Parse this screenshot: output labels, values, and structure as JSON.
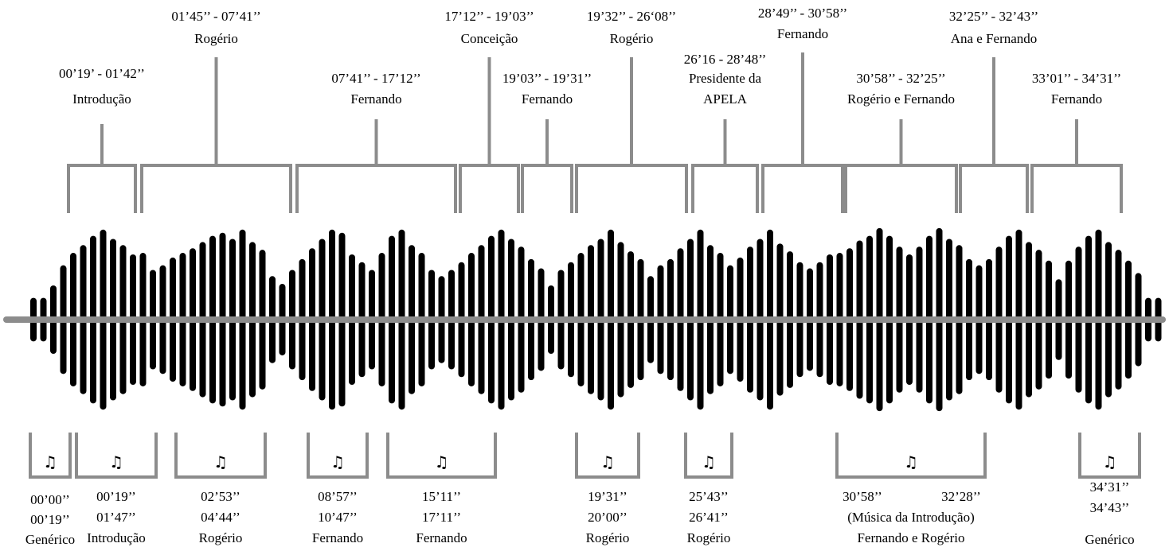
{
  "colors": {
    "background": "#ffffff",
    "bars": "#000000",
    "axis": "#8c8c8c",
    "brackets": "#8c8c8c",
    "text": "#000000"
  },
  "icon": {
    "name": "music-note-icon",
    "glyph": "♫"
  },
  "top_segments": [
    {
      "time": "00’19’ - 01’42’’",
      "speaker": "Introdução"
    },
    {
      "time": "01’45’’ - 07’41’’",
      "speaker": "Rogério"
    },
    {
      "time": "07’41’’ - 17’12’’",
      "speaker": "Fernando"
    },
    {
      "time": "17’12’’ - 19’03’’",
      "speaker": "Conceição"
    },
    {
      "time": "19’03’’ - 19’31’’",
      "speaker": "Fernando"
    },
    {
      "time": "19’32’’ - 26‘08’’",
      "speaker": "Rogério"
    },
    {
      "time": "26’16 - 28’48’’",
      "speaker": "Presidente da",
      "speaker_line2": "APELA"
    },
    {
      "time": "28’49’’ - 30’58’’",
      "speaker": "Fernando"
    },
    {
      "time": "30’58’’ - 32’25’’",
      "speaker": "Rogério e Fernando"
    },
    {
      "time": "32’25’’ - 32’43’’",
      "speaker": "Ana e Fernando"
    },
    {
      "time": "33’01’’ - 34’31’’",
      "speaker": "Fernando"
    }
  ],
  "music_segments": [
    {
      "lines": [
        "00’00’’",
        "00’19’’",
        "Genérico"
      ]
    },
    {
      "lines": [
        "00’19’’",
        "01’47’’",
        "Introdução"
      ]
    },
    {
      "lines": [
        "02’53’’",
        "04’44’’",
        "Rogério"
      ]
    },
    {
      "lines": [
        "08’57’’",
        "10’47’’",
        "Fernando"
      ]
    },
    {
      "lines": [
        "15’11’’",
        "17’11’’",
        "Fernando"
      ]
    },
    {
      "lines": [
        "19’31’’",
        "20’00’’",
        "Rogério"
      ]
    },
    {
      "lines": [
        "25’43’’",
        "26’41’’",
        "Rogério"
      ]
    },
    {
      "start": "30’58’’",
      "end": "32’28’’",
      "lines": [
        "(Música da Introdução)",
        "Fernando e Rogério"
      ]
    },
    {
      "lines": [
        "34’31’’",
        "34’43’’",
        "Genérico"
      ]
    }
  ],
  "waveform_amplitudes": [
    12,
    12,
    20,
    33,
    41,
    46,
    52,
    56,
    50,
    46,
    40,
    41,
    30,
    33,
    38,
    41,
    44,
    48,
    52,
    54,
    50,
    56,
    48,
    43,
    26,
    21,
    30,
    37,
    44,
    50,
    56,
    54,
    40,
    35,
    30,
    41,
    52,
    56,
    46,
    41,
    30,
    26,
    30,
    35,
    41,
    46,
    52,
    56,
    50,
    45,
    37,
    31,
    20,
    30,
    35,
    41,
    46,
    50,
    56,
    48,
    42,
    37,
    26,
    33,
    37,
    44,
    50,
    56,
    46,
    41,
    33,
    38,
    45,
    50,
    56,
    47,
    42,
    35,
    31,
    35,
    40,
    41,
    44,
    49,
    52,
    57,
    52,
    45,
    40,
    45,
    52,
    57,
    50,
    46,
    37,
    33,
    37,
    45,
    52,
    56,
    48,
    43,
    36,
    24,
    36,
    45,
    52,
    56,
    48,
    43,
    36,
    28,
    12,
    12
  ]
}
